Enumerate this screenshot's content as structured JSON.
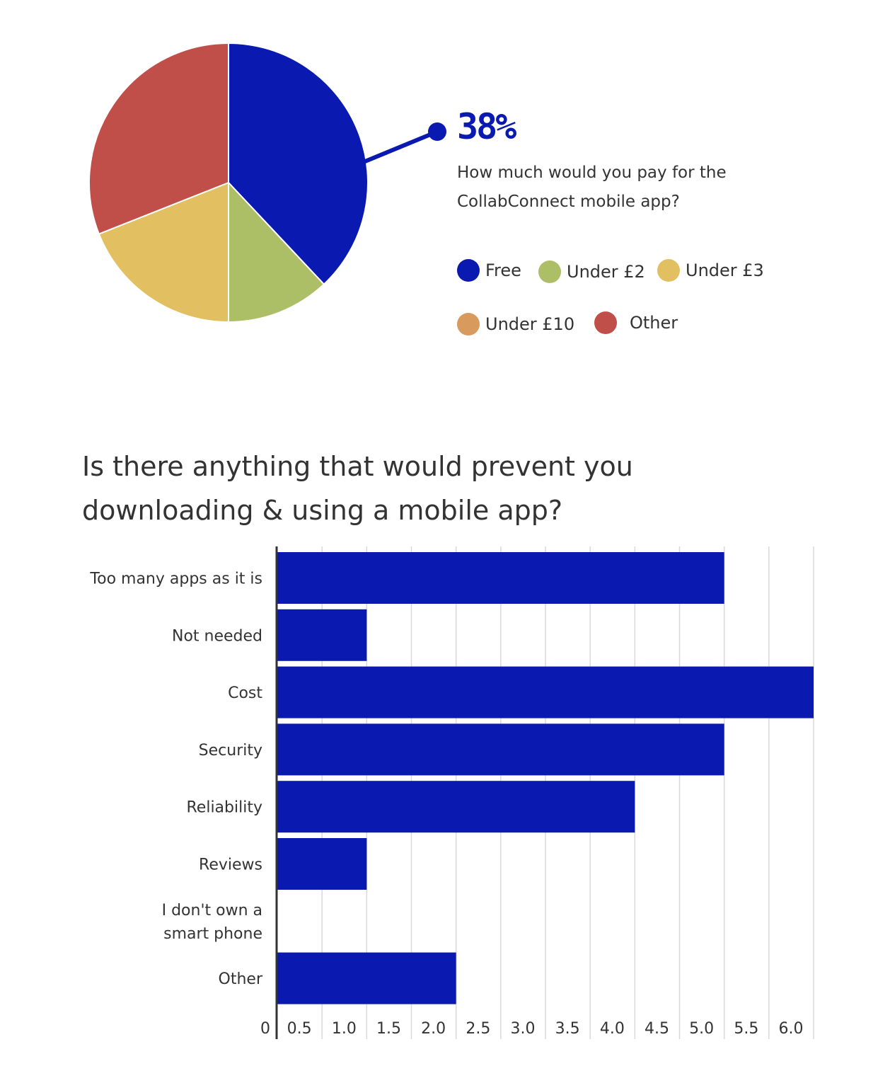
{
  "chart_data": [
    {
      "type": "pie",
      "question": "How much would you pay for the CollabConnect mobile app?",
      "highlight": {
        "label": "Free",
        "value_label": "38%"
      },
      "slices": [
        {
          "label": "Free",
          "value": 38,
          "color": "#0a1ab0"
        },
        {
          "label": "Under £2",
          "value": 12,
          "color": "#acbf67"
        },
        {
          "label": "Under £3",
          "value": 19,
          "color": "#e2c062"
        },
        {
          "label": "Under £10",
          "value": 0,
          "color": "#d99a5d"
        },
        {
          "label": "Other",
          "value": 31,
          "color": "#bf4f48"
        }
      ],
      "legend": [
        "Free",
        "Under £2",
        "Under £3",
        "Under £10",
        "Other"
      ]
    },
    {
      "type": "bar",
      "orientation": "horizontal",
      "title": "Is there anything that would prevent you downloading & using a mobile app?",
      "categories": [
        "Too many apps as it is",
        "Not needed",
        "Cost",
        "Security",
        "Reliability",
        "Reviews",
        "I don't own a smart phone",
        "Other"
      ],
      "values": [
        5,
        1,
        6,
        5,
        4,
        1,
        0,
        2
      ],
      "xlim": [
        0,
        6
      ],
      "xticks": [
        "0",
        "0.5",
        "1.0",
        "1.5",
        "2.0",
        "2.5",
        "3.0",
        "3.5",
        "4.0",
        "4.5",
        "5.0",
        "5.5",
        "6.0"
      ],
      "bar_color": "#0a1ab0",
      "grid": true
    }
  ]
}
